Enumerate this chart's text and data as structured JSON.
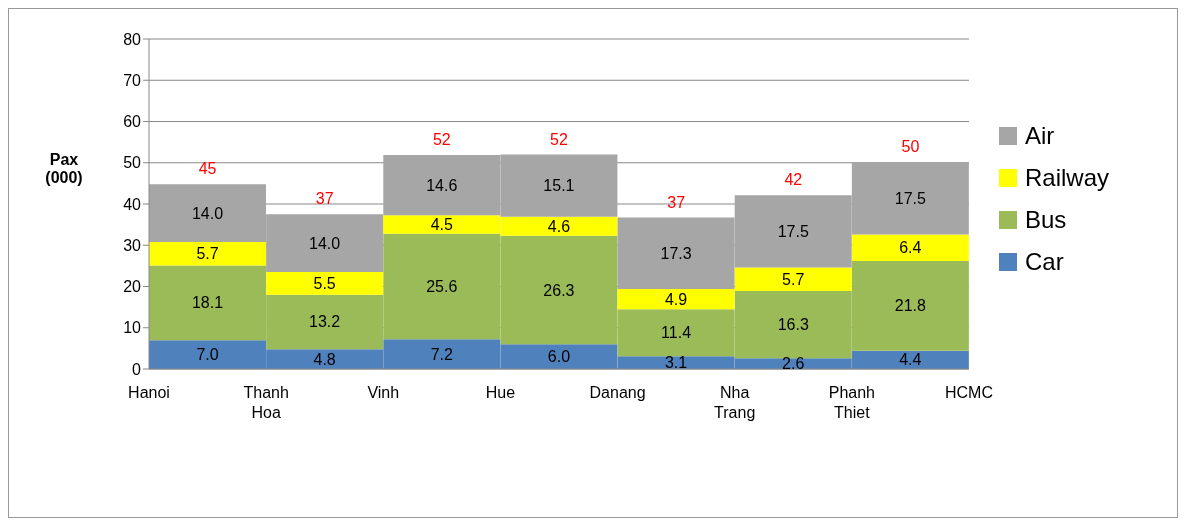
{
  "chart_data": {
    "type": "bar",
    "stacked": true,
    "ylabel": "Pax (000)",
    "categories": [
      null,
      null,
      null,
      null,
      null,
      null,
      null
    ],
    "series": [
      {
        "name": "Car",
        "color": "#4f81bd",
        "values": [
          7.0,
          4.8,
          7.2,
          6.0,
          3.1,
          2.6,
          4.4
        ],
        "value_labels": [
          "7.0",
          "4.8",
          "7.2",
          "6.0",
          "3.1",
          "2.6",
          "4.4"
        ]
      },
      {
        "name": "Bus",
        "color": "#9bbb59",
        "values": [
          18.1,
          13.2,
          25.6,
          26.3,
          11.4,
          16.3,
          21.8
        ],
        "value_labels": [
          "18.1",
          "13.2",
          "25.6",
          "26.3",
          "11.4",
          "16.3",
          "21.8"
        ]
      },
      {
        "name": "Railway",
        "color": "#ffff00",
        "values": [
          5.7,
          5.5,
          4.5,
          4.6,
          4.9,
          5.7,
          6.4
        ],
        "value_labels": [
          "5.7",
          "5.5",
          "4.5",
          "4.6",
          "4.9",
          "5.7",
          "6.4"
        ]
      },
      {
        "name": "Air",
        "color": "#a6a6a6",
        "values": [
          14.0,
          14.0,
          14.6,
          15.1,
          17.3,
          17.5,
          17.5
        ],
        "value_labels": [
          "14.0",
          "14.0",
          "14.6",
          "15.1",
          "17.3",
          "17.5",
          "17.5"
        ]
      }
    ],
    "totals": [
      "45",
      "37",
      "52",
      "52",
      "37",
      "42",
      "50"
    ],
    "annotations": [
      "Hanoi",
      "Thanh Hoa",
      "Vinh",
      "Hue",
      "Danang",
      "Nha Trang",
      "Phanh Thiet",
      "HCMC"
    ],
    "ylim": [
      0,
      80
    ],
    "yticks": [
      0,
      10,
      20,
      30,
      40,
      50,
      60,
      70,
      80
    ],
    "grid": "y",
    "legend": "right"
  }
}
